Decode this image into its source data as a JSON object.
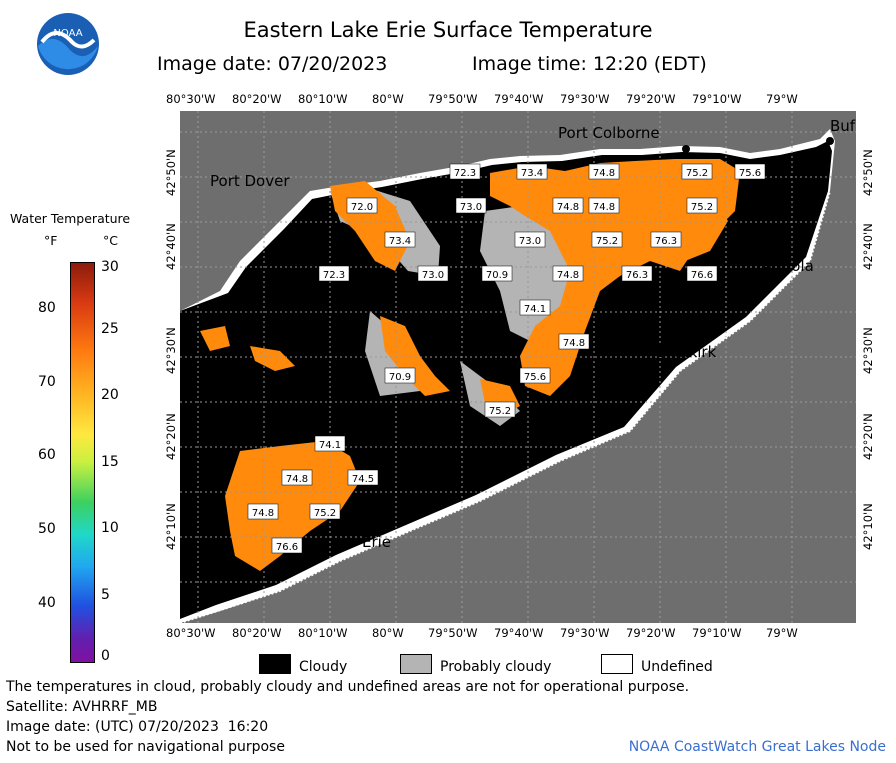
{
  "header": {
    "title": "Eastern Lake Erie Surface Temperature",
    "image_date_label": "Image date: 07/20/2023",
    "image_time_label": "Image time: 12:20 (EDT)",
    "logo_text": "NOAA"
  },
  "map": {
    "longitude_ticks": [
      "80°30'W",
      "80°20'W",
      "80°10'W",
      "80°W",
      "79°50'W",
      "79°40'W",
      "79°30'W",
      "79°20'W",
      "79°10'W",
      "79°W"
    ],
    "latitude_ticks": [
      "42°50'N",
      "42°40'N",
      "42°30'N",
      "42°20'N",
      "42°10'N"
    ],
    "places": [
      {
        "name": "Port Colborne"
      },
      {
        "name": "Port Dover"
      },
      {
        "name": "Angola"
      },
      {
        "name": "Dunkirk"
      },
      {
        "name": "Erie"
      },
      {
        "name": "Buf"
      }
    ],
    "temperature_labels": [
      "72.3",
      "73.4",
      "74.8",
      "75.2",
      "75.6",
      "72.0",
      "73.0",
      "74.8",
      "74.8",
      "75.2",
      "73.4",
      "73.0",
      "75.2",
      "76.3",
      "72.3",
      "73.0",
      "70.9",
      "74.8",
      "76.3",
      "76.6",
      "74.1",
      "74.8",
      "70.9",
      "75.6",
      "75.2",
      "74.1",
      "74.8",
      "74.5",
      "74.8",
      "75.2",
      "76.6"
    ],
    "colors": {
      "water": "#ff8a0c",
      "cloud": "#000000",
      "probably_cloudy": "#b4b4b4",
      "land": "#6e6e6e",
      "undefined": "#ffffff"
    }
  },
  "legend": {
    "title": "Water Temperature",
    "unit_f": "°F",
    "unit_c": "°C",
    "f_ticks": [
      "80",
      "70",
      "60",
      "50",
      "40"
    ],
    "c_ticks": [
      "30",
      "25",
      "20",
      "15",
      "10",
      "5",
      "0"
    ]
  },
  "key": {
    "cloudy": "Cloudy",
    "probably_cloudy": "Probably cloudy",
    "undefined": "Undefined"
  },
  "footer": {
    "note": "The temperatures in cloud, probably cloudy and undefined areas are not for operational purpose.",
    "satellite": "Satellite: AVHRRF_MB",
    "utc_date": "Image date: (UTC) 07/20/2023  16:20",
    "nav": "Not to be used for navigational purpose",
    "credit": "NOAA CoastWatch Great Lakes Node"
  }
}
